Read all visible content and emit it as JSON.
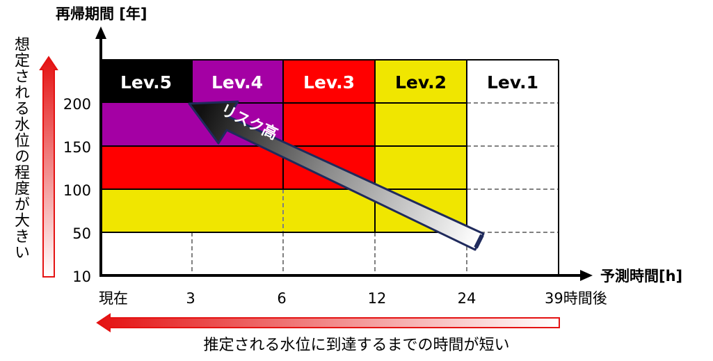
{
  "y_axis_title": "再帰期間 [年]",
  "x_axis_title": "予測時間[h]",
  "y_ticks": [
    "200",
    "150",
    "100",
    "50",
    "10"
  ],
  "x_ticks": [
    "現在",
    "3",
    "6",
    "12",
    "24",
    "39時間後"
  ],
  "levels": [
    "Lev.5",
    "Lev.4",
    "Lev.3",
    "Lev.2",
    "Lev.1"
  ],
  "risk_label": "リスク高",
  "left_note": "想定される水位の程度が大きい",
  "bottom_note": "推定される水位に到達するまでの時間が短い",
  "colors": {
    "black": "#000000",
    "purple": "#a400a4",
    "red": "#ff0000",
    "yellow": "#f0e600",
    "white": "#ffffff",
    "arrow_navy": "#1f2a5c",
    "red_arrow": "#e41212"
  }
}
